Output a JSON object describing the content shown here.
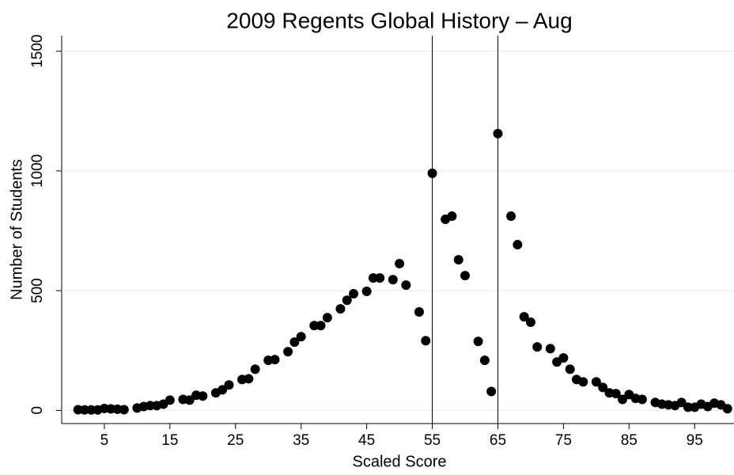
{
  "chart_data": {
    "type": "scatter",
    "title": "2009 Regents Global History – Aug",
    "x_label": "Scaled Score",
    "y_label": "Number of Students",
    "color": "#000000",
    "x": [
      1,
      2,
      3,
      4,
      5,
      6,
      7,
      8,
      10,
      11,
      12,
      13,
      14,
      15,
      17,
      18,
      19,
      20,
      22,
      23,
      24,
      26,
      27,
      28,
      30,
      31,
      33,
      34,
      35,
      37,
      38,
      39,
      41,
      42,
      43,
      45,
      46,
      47,
      49,
      50,
      51,
      53,
      54,
      55,
      57,
      58,
      59,
      60,
      62,
      63,
      64,
      65,
      67,
      68,
      69,
      70,
      71,
      73,
      74,
      75,
      76,
      77,
      78,
      80,
      81,
      82,
      83,
      84,
      85,
      86,
      87,
      89,
      90,
      91,
      92,
      93,
      94,
      95,
      96,
      97,
      98,
      99,
      100
    ],
    "values": [
      3,
      2,
      2,
      2,
      8,
      6,
      5,
      3,
      10,
      16,
      20,
      20,
      26,
      43,
      46,
      43,
      63,
      60,
      73,
      86,
      106,
      129,
      132,
      172,
      209,
      212,
      245,
      285,
      308,
      354,
      354,
      387,
      424,
      460,
      487,
      497,
      553,
      553,
      546,
      613,
      523,
      411,
      291,
      990,
      798,
      811,
      629,
      563,
      288,
      209,
      79,
      1156,
      811,
      692,
      391,
      368,
      265,
      258,
      202,
      219,
      172,
      129,
      119,
      119,
      96,
      73,
      70,
      46,
      66,
      50,
      46,
      33,
      26,
      23,
      20,
      33,
      13,
      13,
      26,
      16,
      30,
      23,
      7
    ],
    "vlines": [
      55,
      65
    ],
    "xlim": [
      -1.5,
      101
    ],
    "ylim": [
      -55,
      1565
    ],
    "xticks": [
      5,
      15,
      25,
      35,
      45,
      55,
      65,
      75,
      85,
      95
    ],
    "yticks": [
      0,
      500,
      1000,
      1500
    ],
    "grid": true
  }
}
